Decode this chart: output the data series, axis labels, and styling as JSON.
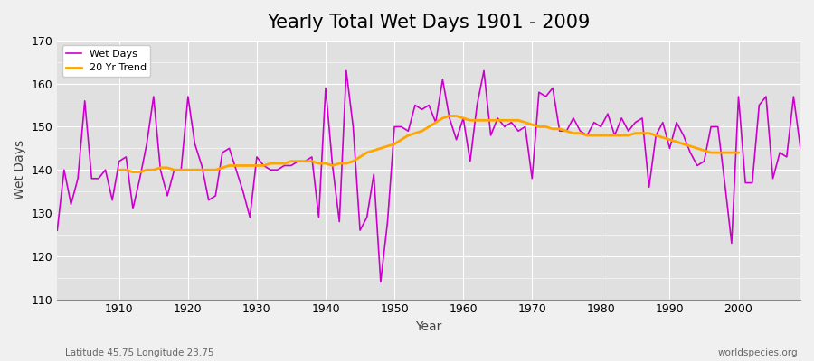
{
  "title": "Yearly Total Wet Days 1901 - 2009",
  "xlabel": "Year",
  "ylabel": "Wet Days",
  "footnote_left": "Latitude 45.75 Longitude 23.75",
  "footnote_right": "worldspecies.org",
  "ylim": [
    110,
    170
  ],
  "xlim": [
    1901,
    2009
  ],
  "yticks": [
    110,
    120,
    130,
    140,
    150,
    160,
    170
  ],
  "xticks": [
    1910,
    1920,
    1930,
    1940,
    1950,
    1960,
    1970,
    1980,
    1990,
    2000
  ],
  "wet_days_color": "#cc00cc",
  "trend_color": "#FFA500",
  "background_color": "#e0e0e0",
  "fig_background_color": "#f0f0f0",
  "legend_wet": "Wet Days",
  "legend_trend": "20 Yr Trend",
  "years": [
    1901,
    1902,
    1903,
    1904,
    1905,
    1906,
    1907,
    1908,
    1909,
    1910,
    1911,
    1912,
    1913,
    1914,
    1915,
    1916,
    1917,
    1918,
    1919,
    1920,
    1921,
    1922,
    1923,
    1924,
    1925,
    1926,
    1927,
    1928,
    1929,
    1930,
    1931,
    1932,
    1933,
    1934,
    1935,
    1936,
    1937,
    1938,
    1939,
    1940,
    1941,
    1942,
    1943,
    1944,
    1945,
    1946,
    1947,
    1948,
    1949,
    1950,
    1951,
    1952,
    1953,
    1954,
    1955,
    1956,
    1957,
    1958,
    1959,
    1960,
    1961,
    1962,
    1963,
    1964,
    1965,
    1966,
    1967,
    1968,
    1969,
    1970,
    1971,
    1972,
    1973,
    1974,
    1975,
    1976,
    1977,
    1978,
    1979,
    1980,
    1981,
    1982,
    1983,
    1984,
    1985,
    1986,
    1987,
    1988,
    1989,
    1990,
    1991,
    1992,
    1993,
    1994,
    1995,
    1996,
    1997,
    1998,
    1999,
    2000,
    2001,
    2002,
    2003,
    2004,
    2005,
    2006,
    2007,
    2008,
    2009
  ],
  "wet_days": [
    126,
    140,
    132,
    138,
    156,
    138,
    138,
    140,
    133,
    142,
    143,
    131,
    138,
    146,
    157,
    140,
    134,
    140,
    140,
    157,
    146,
    141,
    133,
    134,
    144,
    145,
    140,
    135,
    129,
    143,
    141,
    140,
    140,
    141,
    141,
    142,
    142,
    143,
    129,
    159,
    141,
    128,
    163,
    150,
    126,
    129,
    139,
    114,
    128,
    150,
    150,
    149,
    155,
    154,
    155,
    151,
    161,
    152,
    147,
    152,
    142,
    155,
    163,
    148,
    152,
    150,
    151,
    149,
    150,
    138,
    158,
    157,
    159,
    149,
    149,
    152,
    149,
    148,
    151,
    150,
    153,
    148,
    152,
    149,
    151,
    152,
    136,
    148,
    151,
    145,
    151,
    148,
    144,
    141,
    142,
    150,
    150,
    137,
    123,
    157,
    137,
    137,
    155,
    157,
    138,
    144,
    143,
    157,
    145
  ],
  "trend_years": [
    1910,
    1911,
    1912,
    1913,
    1914,
    1915,
    1916,
    1917,
    1918,
    1919,
    1920,
    1921,
    1922,
    1923,
    1924,
    1925,
    1926,
    1927,
    1928,
    1929,
    1930,
    1931,
    1932,
    1933,
    1934,
    1935,
    1936,
    1937,
    1938,
    1939,
    1940,
    1941,
    1942,
    1943,
    1944,
    1945,
    1946,
    1947,
    1948,
    1949,
    1950,
    1951,
    1952,
    1953,
    1954,
    1955,
    1956,
    1957,
    1958,
    1959,
    1960,
    1961,
    1962,
    1963,
    1964,
    1965,
    1966,
    1967,
    1968,
    1969,
    1970,
    1971,
    1972,
    1973,
    1974,
    1975,
    1976,
    1977,
    1978,
    1979,
    1980,
    1981,
    1982,
    1983,
    1984,
    1985,
    1986,
    1987,
    1988,
    1989,
    1990,
    1991,
    1992,
    1993,
    1994,
    1995,
    1996,
    1997,
    1998,
    1999,
    2000
  ],
  "trend_values": [
    140.0,
    140.0,
    139.5,
    139.5,
    140.0,
    140.0,
    140.5,
    140.5,
    140.0,
    140.0,
    140.0,
    140.0,
    140.0,
    140.0,
    140.0,
    140.5,
    141.0,
    141.0,
    141.0,
    141.0,
    141.0,
    141.0,
    141.5,
    141.5,
    141.5,
    142.0,
    142.0,
    142.0,
    142.0,
    141.5,
    141.5,
    141.0,
    141.5,
    141.5,
    142.0,
    143.0,
    144.0,
    144.5,
    145.0,
    145.5,
    146.0,
    147.0,
    148.0,
    148.5,
    149.0,
    150.0,
    151.0,
    152.0,
    152.5,
    152.5,
    152.0,
    151.5,
    151.5,
    151.5,
    151.5,
    151.5,
    151.5,
    151.5,
    151.5,
    151.0,
    150.5,
    150.0,
    150.0,
    149.5,
    149.5,
    149.0,
    148.5,
    148.5,
    148.0,
    148.0,
    148.0,
    148.0,
    148.0,
    148.0,
    148.0,
    148.5,
    148.5,
    148.5,
    148.0,
    147.5,
    147.0,
    146.5,
    146.0,
    145.5,
    145.0,
    144.5,
    144.0,
    144.0,
    144.0,
    144.0,
    144.0
  ]
}
